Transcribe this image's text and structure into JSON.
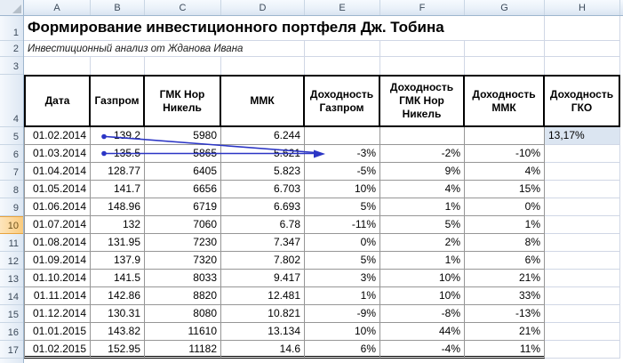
{
  "columns": [
    "A",
    "B",
    "C",
    "D",
    "E",
    "F",
    "G",
    "H"
  ],
  "row_numbers": [
    "1",
    "2",
    "3",
    "4",
    "5",
    "6",
    "7",
    "8",
    "9",
    "10",
    "11",
    "12",
    "13",
    "14",
    "15",
    "16",
    "17"
  ],
  "selected_row": "10",
  "title": "Формирование инвестиционного портфеля Дж. Тобина",
  "subtitle": "Инвестиционный анализ от Жданова Ивана",
  "table": {
    "headers": [
      "Дата",
      "Газпром",
      "ГМК Нор Никель",
      "ММК",
      "Доходность Газпром",
      "Доходность ГМК Нор Никель",
      "Доходность ММК",
      "Доходность ГКО"
    ],
    "gko_rate": "13,17%",
    "rows": [
      {
        "date": "01.02.2014",
        "gazprom": "139.2",
        "gmk": "5980",
        "mmk": "6.244",
        "d_gazprom": "",
        "d_gmk": "",
        "d_mmk": ""
      },
      {
        "date": "01.03.2014",
        "gazprom": "135.5",
        "gmk": "5865",
        "mmk": "5.621",
        "d_gazprom": "-3%",
        "d_gmk": "-2%",
        "d_mmk": "-10%"
      },
      {
        "date": "01.04.2014",
        "gazprom": "128.77",
        "gmk": "6405",
        "mmk": "5.823",
        "d_gazprom": "-5%",
        "d_gmk": "9%",
        "d_mmk": "4%"
      },
      {
        "date": "01.05.2014",
        "gazprom": "141.7",
        "gmk": "6656",
        "mmk": "6.703",
        "d_gazprom": "10%",
        "d_gmk": "4%",
        "d_mmk": "15%"
      },
      {
        "date": "01.06.2014",
        "gazprom": "148.96",
        "gmk": "6719",
        "mmk": "6.693",
        "d_gazprom": "5%",
        "d_gmk": "1%",
        "d_mmk": "0%"
      },
      {
        "date": "01.07.2014",
        "gazprom": "132",
        "gmk": "7060",
        "mmk": "6.78",
        "d_gazprom": "-11%",
        "d_gmk": "5%",
        "d_mmk": "1%"
      },
      {
        "date": "01.08.2014",
        "gazprom": "131.95",
        "gmk": "7230",
        "mmk": "7.347",
        "d_gazprom": "0%",
        "d_gmk": "2%",
        "d_mmk": "8%"
      },
      {
        "date": "01.09.2014",
        "gazprom": "137.9",
        "gmk": "7320",
        "mmk": "7.802",
        "d_gazprom": "5%",
        "d_gmk": "1%",
        "d_mmk": "6%"
      },
      {
        "date": "01.10.2014",
        "gazprom": "141.5",
        "gmk": "8033",
        "mmk": "9.417",
        "d_gazprom": "3%",
        "d_gmk": "10%",
        "d_mmk": "21%"
      },
      {
        "date": "01.11.2014",
        "gazprom": "142.86",
        "gmk": "8820",
        "mmk": "12.481",
        "d_gazprom": "1%",
        "d_gmk": "10%",
        "d_mmk": "33%"
      },
      {
        "date": "01.12.2014",
        "gazprom": "130.31",
        "gmk": "8080",
        "mmk": "10.821",
        "d_gazprom": "-9%",
        "d_gmk": "-8%",
        "d_mmk": "-13%"
      },
      {
        "date": "01.01.2015",
        "gazprom": "143.82",
        "gmk": "11610",
        "mmk": "13.134",
        "d_gazprom": "10%",
        "d_gmk": "44%",
        "d_mmk": "21%"
      },
      {
        "date": "01.02.2015",
        "gazprom": "152.95",
        "gmk": "11182",
        "mmk": "14.6",
        "d_gazprom": "6%",
        "d_gmk": "-4%",
        "d_mmk": "11%"
      }
    ]
  },
  "colors": {
    "arrow": "#2B35C5",
    "gko_fill": "#DBE5F1",
    "selected_row_header": "#FACB7E",
    "gridline": "#D0D7E5",
    "table_border": "#969696",
    "header_border": "#000000"
  }
}
